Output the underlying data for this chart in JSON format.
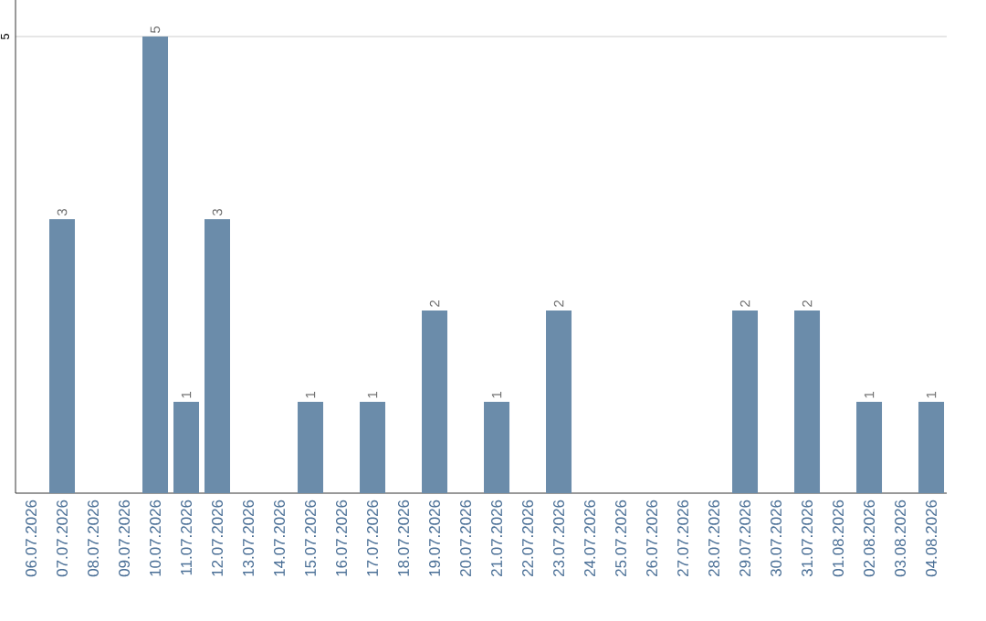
{
  "chart_data": {
    "type": "bar",
    "categories": [
      "06.07.2026",
      "07.07.2026",
      "08.07.2026",
      "09.07.2026",
      "10.07.2026",
      "11.07.2026",
      "12.07.2026",
      "13.07.2026",
      "14.07.2026",
      "15.07.2026",
      "16.07.2026",
      "17.07.2026",
      "18.07.2026",
      "19.07.2026",
      "20.07.2026",
      "21.07.2026",
      "22.07.2026",
      "23.07.2026",
      "24.07.2026",
      "25.07.2026",
      "26.07.2026",
      "27.07.2026",
      "28.07.2026",
      "29.07.2026",
      "30.07.2026",
      "31.07.2026",
      "01.08.2026",
      "02.08.2026",
      "03.08.2026",
      "04.08.2026"
    ],
    "values": [
      0,
      3,
      0,
      0,
      5,
      1,
      3,
      0,
      0,
      1,
      0,
      1,
      0,
      2,
      0,
      1,
      0,
      2,
      0,
      0,
      0,
      0,
      0,
      2,
      0,
      2,
      0,
      1,
      0,
      1
    ],
    "value_labels": [
      null,
      "3",
      null,
      null,
      "5",
      "1",
      "3",
      null,
      null,
      "1",
      null,
      "1",
      null,
      "2",
      null,
      "1",
      null,
      "2",
      null,
      null,
      null,
      null,
      null,
      "2",
      null,
      "2",
      null,
      "1",
      null,
      "1"
    ],
    "color": "#6b8caa",
    "ylim": [
      0,
      5.4
    ],
    "yticks": [
      5
    ],
    "grid": "y"
  }
}
